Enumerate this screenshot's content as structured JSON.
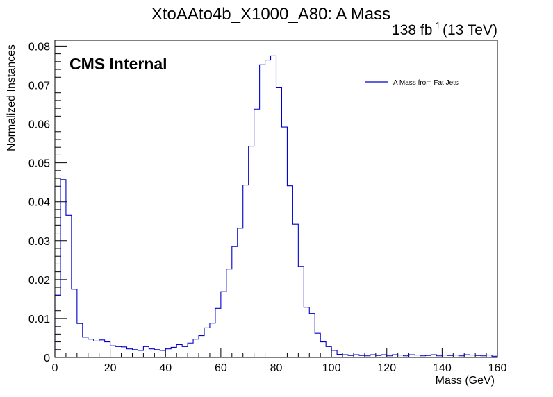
{
  "chart_data": {
    "type": "histogram",
    "title": "XtoAAto4b_X1000_A80: A Mass",
    "lumi_text": "138 fb",
    "lumi_sup": "-1",
    "energy_text": "(13 TeV)",
    "cms_label": "CMS Internal",
    "xlabel": "Mass (GeV)",
    "ylabel": "Normalized Instances",
    "xlim": [
      0,
      160
    ],
    "ylim": [
      0,
      0.0815
    ],
    "x_ticks": [
      0,
      20,
      40,
      60,
      80,
      100,
      120,
      140,
      160
    ],
    "y_ticks": [
      {
        "value": 0,
        "label": "0"
      },
      {
        "value": 0.01,
        "label": "0.01"
      },
      {
        "value": 0.02,
        "label": "0.02"
      },
      {
        "value": 0.03,
        "label": "0.03"
      },
      {
        "value": 0.04,
        "label": "0.04"
      },
      {
        "value": 0.05,
        "label": "0.05"
      },
      {
        "value": 0.06,
        "label": "0.06"
      },
      {
        "value": 0.07,
        "label": "0.07"
      },
      {
        "value": 0.08,
        "label": "0.08"
      }
    ],
    "bin_width": 2,
    "series": [
      {
        "name": "A Mass from Fat Jets",
        "color": "#0000cc",
        "bin_edges_start": 0,
        "values": [
          0.016,
          0.0457,
          0.0365,
          0.0175,
          0.0087,
          0.0052,
          0.0047,
          0.0042,
          0.0045,
          0.004,
          0.003,
          0.0028,
          0.0027,
          0.0022,
          0.002,
          0.0018,
          0.0028,
          0.0022,
          0.002,
          0.0018,
          0.0022,
          0.0026,
          0.0033,
          0.0028,
          0.0037,
          0.0047,
          0.0056,
          0.0076,
          0.0088,
          0.0126,
          0.0169,
          0.0227,
          0.0285,
          0.0332,
          0.0443,
          0.0543,
          0.0638,
          0.0752,
          0.0764,
          0.0775,
          0.0693,
          0.0592,
          0.0441,
          0.0342,
          0.0234,
          0.0129,
          0.0113,
          0.0062,
          0.004,
          0.0028,
          0.0018,
          0.0008,
          0.0007,
          0.0005,
          0.0007,
          0.0005,
          0.0004,
          0.0007,
          0.0005,
          0.0007,
          0.0004,
          0.0007,
          0.0006,
          0.0004,
          0.0007,
          0.0006,
          0.0004,
          0.0005,
          0.0007,
          0.0004,
          0.0006,
          0.0005,
          0.0006,
          0.0004,
          0.0007,
          0.0006,
          0.0005,
          0.0004,
          0.0006,
          0.0003
        ]
      }
    ]
  }
}
